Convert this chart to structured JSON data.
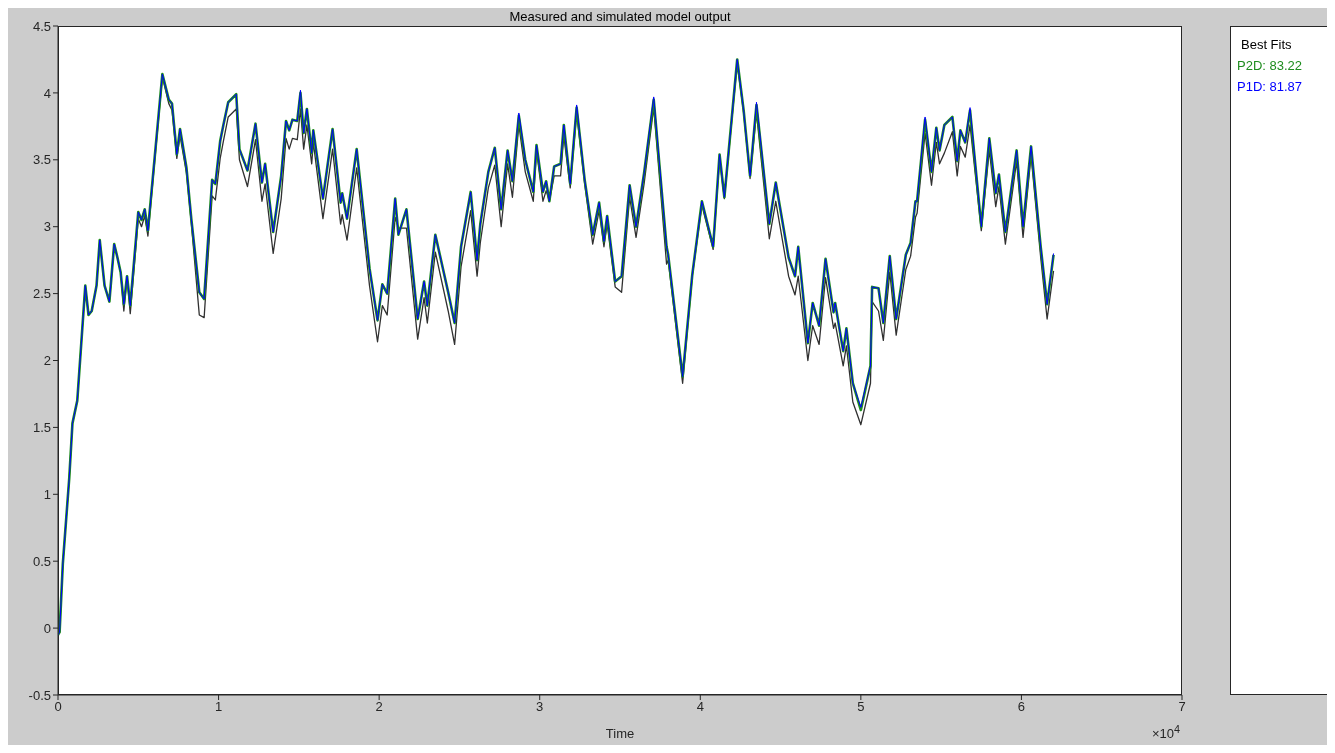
{
  "chart_data": {
    "type": "line",
    "title": "Measured and simulated model output",
    "xlabel": "Time",
    "legend_title": "Best Fits",
    "legend": "right",
    "marker": "none",
    "line_style": "solid",
    "annotations": [
      "×10$^{4}$"
    ],
    "xlim": [
      0,
      7
    ],
    "xticks": [
      0,
      1,
      2,
      3,
      4,
      5,
      6,
      7
    ],
    "ylim": [
      -0.5,
      4.5
    ],
    "yticks": [
      -0.5,
      0,
      0.5,
      1,
      1.5,
      2,
      2.5,
      3,
      3.5,
      4,
      4.5
    ],
    "x": [
      0,
      0.01,
      0.03,
      0.07,
      0.09,
      0.12,
      0.17,
      0.19,
      0.21,
      0.24,
      0.26,
      0.29,
      0.32,
      0.35,
      0.37,
      0.39,
      0.41,
      0.43,
      0.45,
      0.5,
      0.52,
      0.54,
      0.56,
      0.65,
      0.69,
      0.71,
      0.74,
      0.76,
      0.8,
      0.83,
      0.88,
      0.91,
      0.96,
      0.98,
      1.01,
      1.03,
      1.06,
      1.11,
      1.13,
      1.18,
      1.23,
      1.27,
      1.29,
      1.34,
      1.39,
      1.42,
      1.44,
      1.46,
      1.49,
      1.51,
      1.53,
      1.55,
      1.58,
      1.59,
      1.65,
      1.71,
      1.76,
      1.77,
      1.8,
      1.86,
      1.94,
      1.99,
      2.02,
      2.05,
      2.1,
      2.12,
      2.17,
      2.24,
      2.28,
      2.3,
      2.35,
      2.43,
      2.47,
      2.51,
      2.57,
      2.61,
      2.63,
      2.68,
      2.72,
      2.76,
      2.8,
      2.83,
      2.87,
      2.91,
      2.96,
      2.98,
      3.02,
      3.04,
      3.06,
      3.09,
      3.13,
      3.15,
      3.19,
      3.23,
      3.28,
      3.33,
      3.37,
      3.4,
      3.42,
      3.47,
      3.51,
      3.56,
      3.6,
      3.65,
      3.71,
      3.79,
      3.8,
      3.89,
      3.95,
      4.01,
      4.08,
      4.12,
      4.15,
      4.23,
      4.27,
      4.31,
      4.35,
      4.43,
      4.47,
      4.55,
      4.59,
      4.61,
      4.67,
      4.7,
      4.74,
      4.78,
      4.83,
      4.84,
      4.89,
      4.91,
      4.95,
      5.0,
      5.06,
      5.07,
      5.11,
      5.14,
      5.18,
      5.22,
      5.28,
      5.31,
      5.34,
      5.35,
      5.4,
      5.44,
      5.47,
      5.49,
      5.52,
      5.57,
      5.6,
      5.62,
      5.65,
      5.68,
      5.75,
      5.8,
      5.84,
      5.86,
      5.9,
      5.97,
      6.01,
      6.06,
      6.12,
      6.16,
      6.2
    ],
    "series": [
      {
        "color": "#303030",
        "values": [
          -0.05,
          -0.03,
          0.48,
          1.12,
          1.53,
          1.7,
          2.56,
          2.34,
          2.37,
          2.56,
          2.9,
          2.56,
          2.44,
          2.87,
          2.77,
          2.66,
          2.37,
          2.63,
          2.35,
          3.06,
          3.0,
          3.08,
          2.93,
          4.12,
          3.92,
          3.87,
          3.51,
          3.68,
          3.4,
          3.03,
          2.34,
          2.32,
          3.23,
          3.2,
          3.51,
          3.64,
          3.82,
          3.88,
          3.5,
          3.3,
          3.65,
          3.19,
          3.32,
          2.8,
          3.21,
          3.66,
          3.58,
          3.66,
          3.65,
          3.88,
          3.58,
          3.76,
          3.47,
          3.63,
          3.06,
          3.58,
          3.02,
          3.09,
          2.9,
          3.44,
          2.56,
          2.14,
          2.41,
          2.34,
          3.07,
          2.99,
          2.99,
          2.16,
          2.47,
          2.28,
          2.81,
          2.37,
          2.12,
          2.7,
          3.12,
          2.63,
          2.88,
          3.29,
          3.46,
          3.0,
          3.47,
          3.22,
          3.76,
          3.41,
          3.19,
          3.57,
          3.19,
          3.27,
          3.19,
          3.38,
          3.38,
          3.68,
          3.29,
          3.85,
          3.32,
          2.87,
          3.12,
          2.85,
          3.02,
          2.55,
          2.51,
          3.22,
          2.92,
          3.32,
          3.89,
          2.72,
          2.75,
          1.83,
          2.63,
          3.16,
          2.83,
          3.51,
          3.21,
          4.22,
          3.85,
          3.36,
          3.85,
          2.91,
          3.19,
          2.63,
          2.49,
          2.63,
          2.0,
          2.26,
          2.12,
          2.62,
          2.24,
          2.28,
          1.96,
          2.11,
          1.69,
          1.52,
          1.83,
          2.44,
          2.37,
          2.15,
          2.66,
          2.19,
          2.68,
          2.78,
          3.07,
          3.1,
          3.7,
          3.31,
          3.63,
          3.47,
          3.55,
          3.71,
          3.38,
          3.6,
          3.52,
          3.76,
          2.97,
          3.57,
          3.15,
          3.3,
          2.87,
          3.49,
          2.92,
          3.53,
          2.77,
          2.31,
          2.67
        ]
      },
      {
        "name": "P1D: 81.87",
        "color": "#0000ff",
        "values": [
          -0.05,
          -0.03,
          0.48,
          1.12,
          1.53,
          1.7,
          2.56,
          2.34,
          2.37,
          2.56,
          2.9,
          2.56,
          2.44,
          2.87,
          2.77,
          2.66,
          2.42,
          2.63,
          2.41,
          3.11,
          3.05,
          3.13,
          2.97,
          4.14,
          3.95,
          3.92,
          3.54,
          3.73,
          3.44,
          3.06,
          2.51,
          2.46,
          3.35,
          3.32,
          3.64,
          3.76,
          3.93,
          3.99,
          3.58,
          3.42,
          3.77,
          3.33,
          3.47,
          2.96,
          3.38,
          3.79,
          3.72,
          3.8,
          3.79,
          4.02,
          3.7,
          3.88,
          3.55,
          3.72,
          3.21,
          3.73,
          3.18,
          3.25,
          3.06,
          3.58,
          2.69,
          2.3,
          2.57,
          2.5,
          3.21,
          2.94,
          3.13,
          2.31,
          2.59,
          2.41,
          2.94,
          2.51,
          2.28,
          2.85,
          3.26,
          2.75,
          3.02,
          3.41,
          3.59,
          3.13,
          3.57,
          3.34,
          3.85,
          3.5,
          3.26,
          3.61,
          3.26,
          3.34,
          3.19,
          3.45,
          3.47,
          3.76,
          3.32,
          3.91,
          3.35,
          2.94,
          3.18,
          2.89,
          3.08,
          2.59,
          2.63,
          3.31,
          3.0,
          3.4,
          3.97,
          2.85,
          2.79,
          1.88,
          2.64,
          3.19,
          2.85,
          3.54,
          3.22,
          4.25,
          3.87,
          3.38,
          3.93,
          3.02,
          3.33,
          2.77,
          2.63,
          2.85,
          2.13,
          2.43,
          2.26,
          2.76,
          2.36,
          2.43,
          2.07,
          2.24,
          1.83,
          1.65,
          1.96,
          2.55,
          2.54,
          2.28,
          2.78,
          2.31,
          2.79,
          2.88,
          3.19,
          3.19,
          3.82,
          3.41,
          3.74,
          3.57,
          3.76,
          3.82,
          3.49,
          3.72,
          3.63,
          3.89,
          3.0,
          3.66,
          3.25,
          3.39,
          2.96,
          3.57,
          3.0,
          3.6,
          2.85,
          2.42,
          2.8
        ]
      },
      {
        "name": "P2D: 83.22",
        "color": "#1e8c1e",
        "values": [
          -0.05,
          -0.03,
          0.48,
          1.12,
          1.53,
          1.7,
          2.56,
          2.34,
          2.37,
          2.56,
          2.9,
          2.56,
          2.44,
          2.87,
          2.77,
          2.66,
          2.42,
          2.63,
          2.41,
          3.11,
          3.05,
          3.13,
          2.97,
          4.14,
          3.95,
          3.92,
          3.54,
          3.73,
          3.44,
          3.06,
          2.51,
          2.46,
          3.35,
          3.32,
          3.64,
          3.76,
          3.93,
          3.99,
          3.58,
          3.42,
          3.77,
          3.33,
          3.47,
          2.96,
          3.38,
          3.79,
          3.72,
          3.8,
          3.79,
          4.0,
          3.7,
          3.88,
          3.55,
          3.72,
          3.21,
          3.73,
          3.18,
          3.25,
          3.06,
          3.58,
          2.69,
          2.3,
          2.57,
          2.5,
          3.21,
          2.94,
          3.13,
          2.31,
          2.59,
          2.41,
          2.94,
          2.51,
          2.28,
          2.85,
          3.26,
          2.75,
          3.02,
          3.41,
          3.59,
          3.13,
          3.57,
          3.34,
          3.83,
          3.5,
          3.26,
          3.61,
          3.26,
          3.34,
          3.19,
          3.45,
          3.47,
          3.76,
          3.32,
          3.89,
          3.35,
          2.94,
          3.18,
          2.89,
          3.08,
          2.59,
          2.63,
          3.31,
          3.0,
          3.4,
          3.95,
          2.85,
          2.79,
          1.88,
          2.64,
          3.19,
          2.85,
          3.54,
          3.22,
          4.25,
          3.87,
          3.38,
          3.91,
          3.02,
          3.33,
          2.77,
          2.63,
          2.85,
          2.13,
          2.43,
          2.26,
          2.76,
          2.36,
          2.43,
          2.07,
          2.24,
          1.83,
          1.63,
          1.96,
          2.55,
          2.54,
          2.28,
          2.78,
          2.31,
          2.79,
          2.88,
          3.19,
          3.19,
          3.8,
          3.41,
          3.74,
          3.57,
          3.76,
          3.82,
          3.49,
          3.72,
          3.63,
          3.87,
          3.0,
          3.66,
          3.25,
          3.39,
          2.96,
          3.57,
          3.0,
          3.6,
          2.85,
          2.42,
          2.79
        ]
      }
    ]
  }
}
